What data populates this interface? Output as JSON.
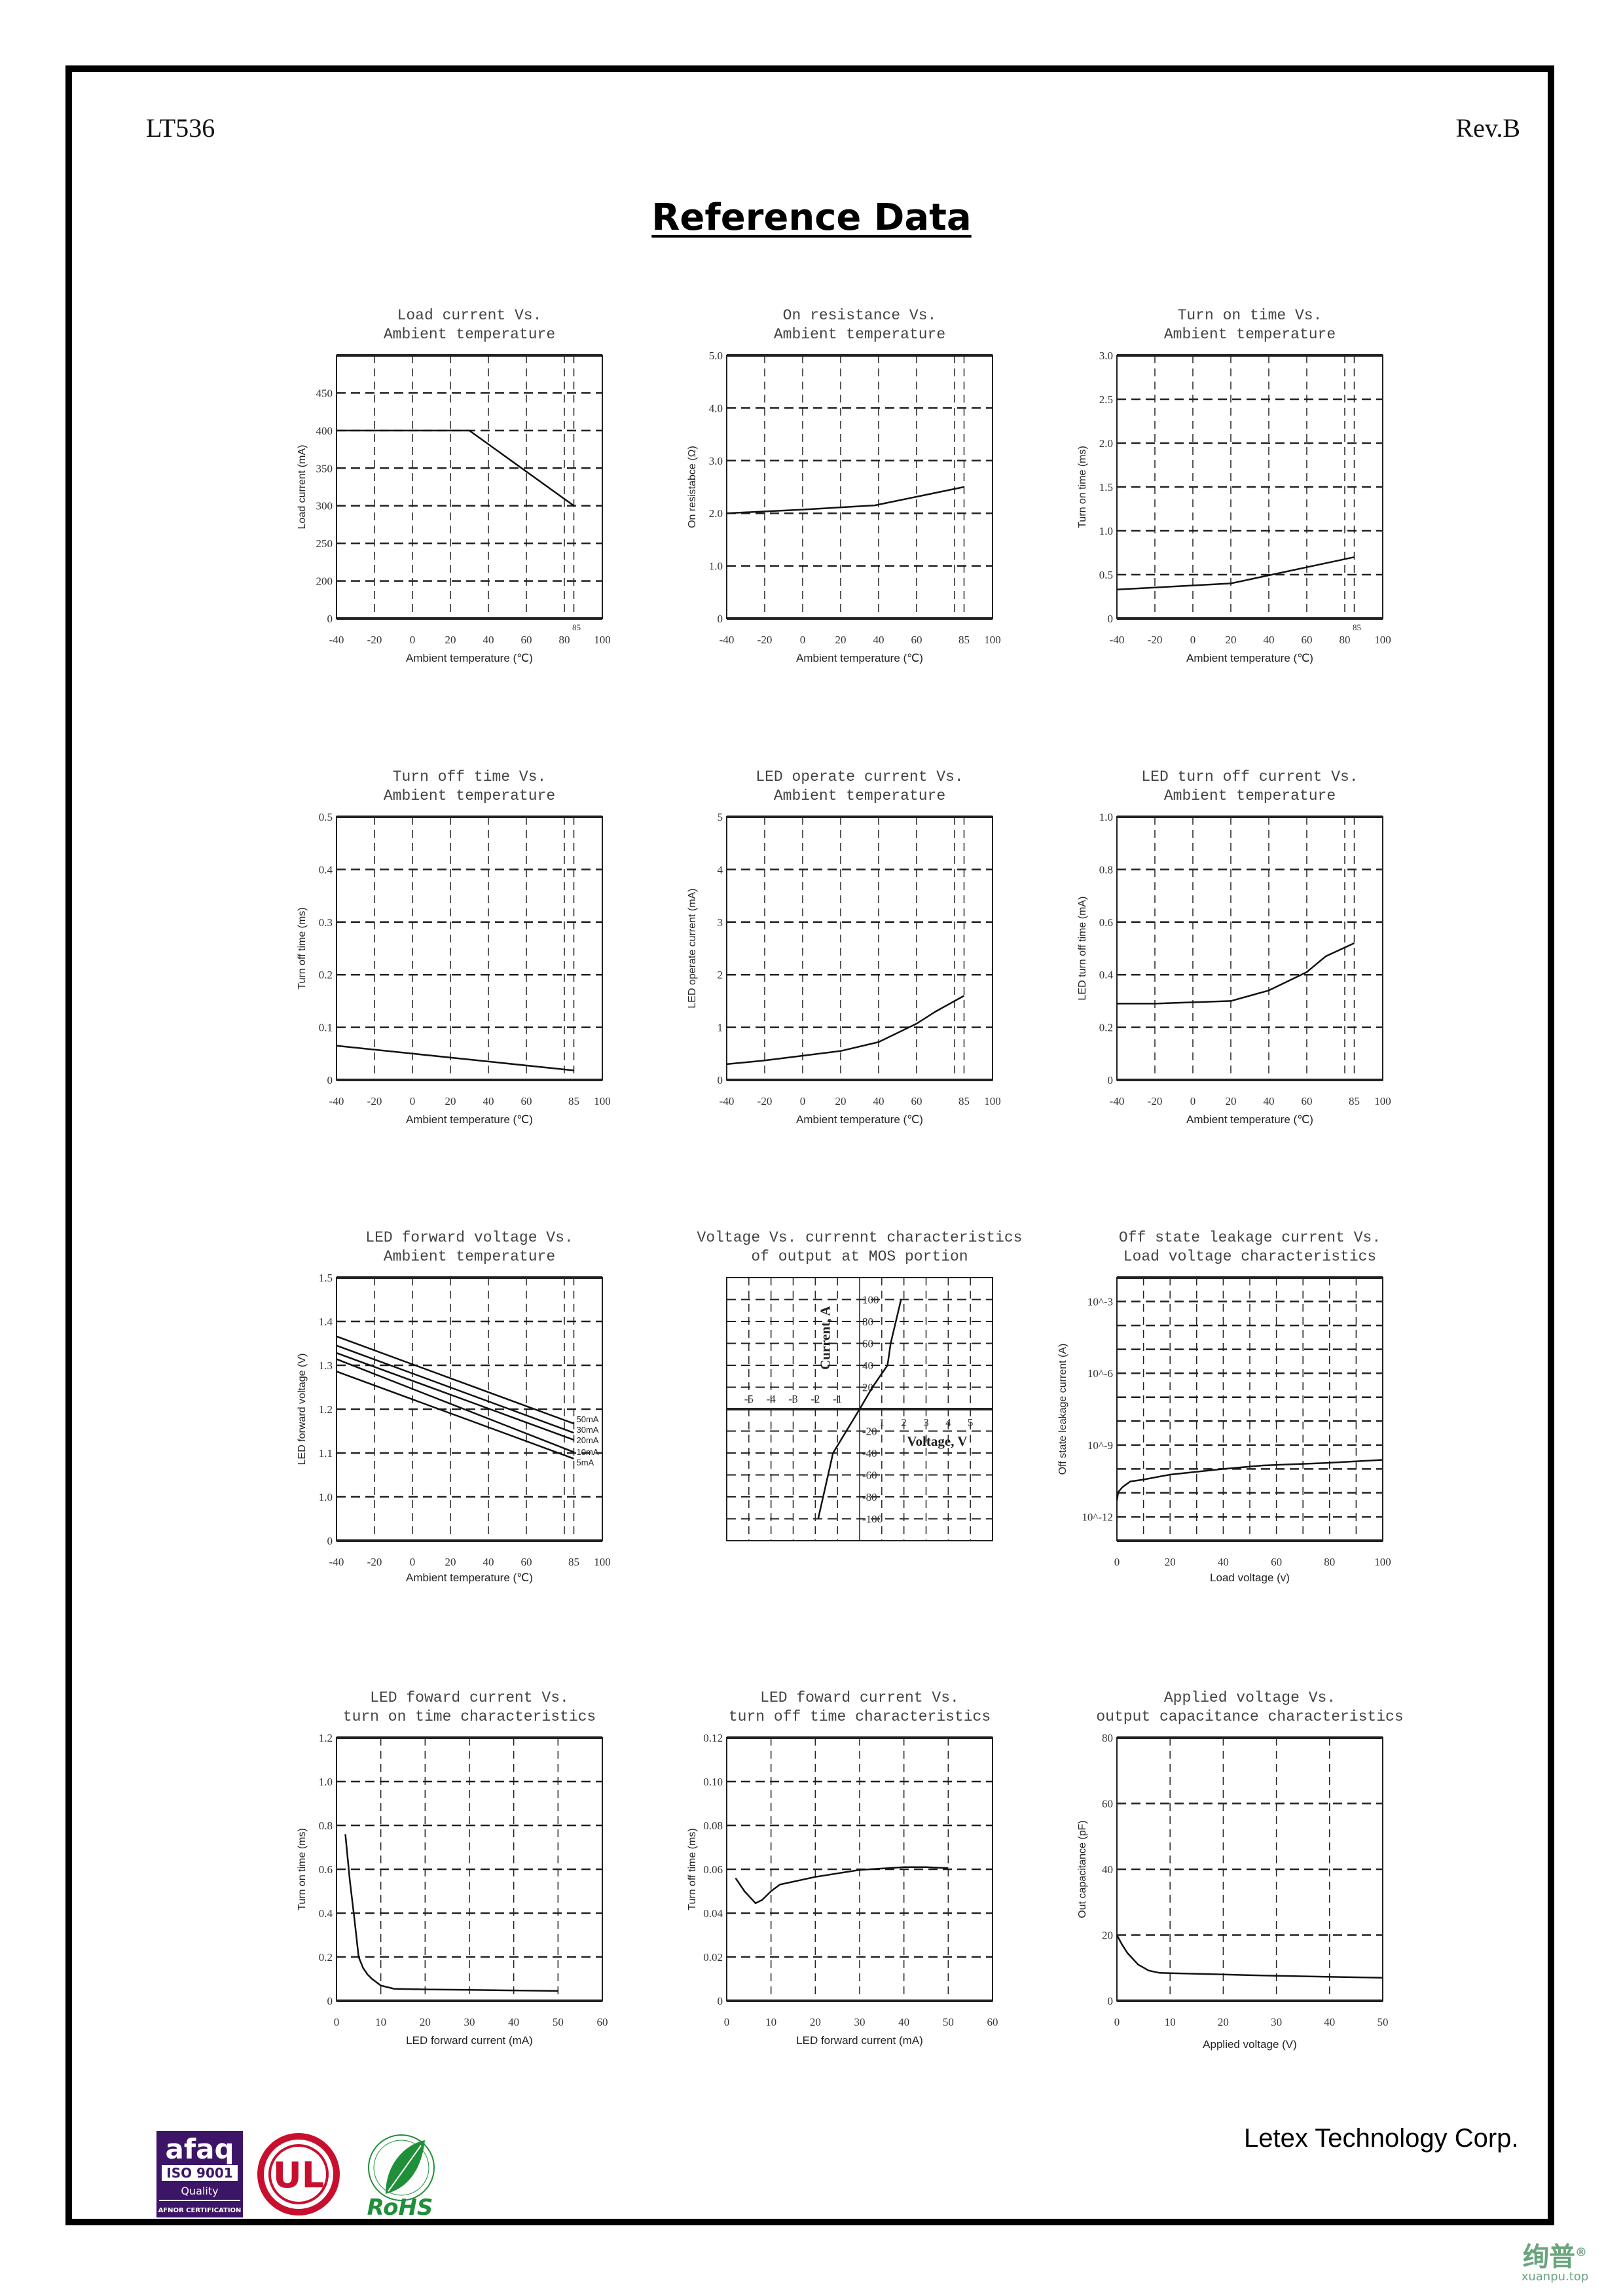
{
  "header": {
    "doc_id": "LT536",
    "revision": "Rev.B",
    "title": "Reference Data"
  },
  "footer": {
    "company": "Letex Technology Corp.",
    "logos": [
      {
        "name": "afaq-iso-9001-logo",
        "text": [
          "afaq",
          "ISO 9001",
          "Quality",
          "AFNOR CERTIFICATION"
        ],
        "color": "#3d1566"
      },
      {
        "name": "ul-logo",
        "text": [
          "UL"
        ],
        "color": "#c8102e"
      },
      {
        "name": "rohs-logo",
        "text": [
          "RoHS"
        ],
        "color": "#1f8f3a"
      }
    ],
    "watermark": {
      "chars": "绚普",
      "mark": "®",
      "site": "xuanpu.top",
      "color": "#6aa57e"
    }
  },
  "charts": [
    {
      "type": "line",
      "title": [
        "Load current Vs.",
        "Ambient temperature"
      ],
      "xlabel": "Ambient temperature (℃)",
      "ylabel": "Load current (mA)",
      "xlim": [
        -40,
        100
      ],
      "xticks": [
        "-40",
        "-20",
        "0",
        "20",
        "40",
        "60",
        "80",
        "85",
        "100"
      ],
      "xgrid": [
        -20,
        0,
        20,
        40,
        60,
        80,
        85
      ],
      "ylim": [
        0,
        500
      ],
      "y_axis_break": true,
      "yticks": [
        "0",
        "200",
        "250",
        "300",
        "350",
        "400",
        "450"
      ],
      "series": [
        {
          "x": [
            -40,
            30,
            85
          ],
          "y": [
            400,
            400,
            300
          ]
        }
      ]
    },
    {
      "type": "line",
      "title": [
        "On resistance Vs.",
        "Ambient temperature"
      ],
      "xlabel": "Ambient temperature (℃)",
      "ylabel": "On resistabce (Ω)",
      "xlim": [
        -40,
        100
      ],
      "xticks": [
        "-40",
        "-20",
        "0",
        "20",
        "40",
        "60",
        "85",
        "100"
      ],
      "xgrid": [
        -20,
        0,
        20,
        40,
        60,
        80,
        85
      ],
      "ylim": [
        0,
        5
      ],
      "yticks": [
        "0",
        "1.0",
        "2.0",
        "3.0",
        "4.0",
        "5.0"
      ],
      "series": [
        {
          "x": [
            -40,
            0,
            38,
            85
          ],
          "y": [
            2.0,
            2.07,
            2.15,
            2.5
          ]
        }
      ]
    },
    {
      "type": "line",
      "title": [
        "Turn on time Vs.",
        "Ambient temperature"
      ],
      "xlabel": "Ambient temperature (℃)",
      "ylabel": "Turn on time (ms)",
      "xlim": [
        -40,
        100
      ],
      "xticks": [
        "-40",
        "-20",
        "0",
        "20",
        "40",
        "60",
        "80",
        "85",
        "100"
      ],
      "xgrid": [
        -20,
        0,
        20,
        40,
        60,
        80,
        85
      ],
      "ylim": [
        0,
        3
      ],
      "yticks": [
        "0",
        "0.5",
        "1.0",
        "1.5",
        "2.0",
        "2.5",
        "3.0"
      ],
      "series": [
        {
          "x": [
            -40,
            20,
            85
          ],
          "y": [
            0.33,
            0.4,
            0.7
          ]
        }
      ]
    },
    {
      "type": "line",
      "title": [
        "Turn off time Vs.",
        "Ambient temperature"
      ],
      "xlabel": "Ambient temperature (℃)",
      "ylabel": "Turn off time (ms)",
      "xlim": [
        -40,
        100
      ],
      "xticks": [
        "-40",
        "-20",
        "0",
        "20",
        "40",
        "60",
        "85",
        "100"
      ],
      "xgrid": [
        -20,
        0,
        20,
        40,
        60,
        80,
        85
      ],
      "ylim": [
        0,
        0.5
      ],
      "yticks": [
        "0",
        "0.1",
        "0.2",
        "0.3",
        "0.4",
        "0.5"
      ],
      "series": [
        {
          "x": [
            -40,
            85
          ],
          "y": [
            0.065,
            0.018
          ]
        }
      ]
    },
    {
      "type": "line",
      "title": [
        "LED operate current Vs.",
        "Ambient temperature"
      ],
      "xlabel": "Ambient temperature (℃)",
      "ylabel": "LED operate current (mA)",
      "xlim": [
        -40,
        100
      ],
      "xticks": [
        "-40",
        "-20",
        "0",
        "20",
        "40",
        "60",
        "85",
        "100"
      ],
      "xgrid": [
        -20,
        0,
        20,
        40,
        60,
        80,
        85
      ],
      "ylim": [
        0,
        5
      ],
      "yticks": [
        "0",
        "1",
        "2",
        "3",
        "4",
        "5"
      ],
      "series": [
        {
          "x": [
            -40,
            -20,
            0,
            20,
            40,
            60,
            70,
            85
          ],
          "y": [
            0.3,
            0.37,
            0.46,
            0.55,
            0.72,
            1.07,
            1.3,
            1.6
          ]
        }
      ]
    },
    {
      "type": "line",
      "title": [
        "LED turn off current Vs.",
        "Ambient temperature"
      ],
      "xlabel": "Ambient temperature (℃)",
      "ylabel": "LED turn off time (mA)",
      "xlim": [
        -40,
        100
      ],
      "xticks": [
        "-40",
        "-20",
        "0",
        "20",
        "40",
        "60",
        "85",
        "100"
      ],
      "xgrid": [
        -20,
        0,
        20,
        40,
        60,
        80,
        85
      ],
      "ylim": [
        0,
        1.0
      ],
      "yticks": [
        "0",
        "0.2",
        "0.4",
        "0.6",
        "0.8",
        "1.0"
      ],
      "series": [
        {
          "x": [
            -40,
            -20,
            20,
            40,
            60,
            70,
            85
          ],
          "y": [
            0.29,
            0.29,
            0.3,
            0.34,
            0.41,
            0.47,
            0.52
          ]
        }
      ]
    },
    {
      "type": "line",
      "title": [
        "LED forward voltage Vs.",
        "Ambient temperature"
      ],
      "xlabel": "Ambient temperature (℃)",
      "ylabel": "LED forward voltage (V)",
      "xlim": [
        -40,
        100
      ],
      "xticks": [
        "-40",
        "-20",
        "0",
        "20",
        "40",
        "60",
        "85",
        "100"
      ],
      "xgrid": [
        -20,
        0,
        20,
        40,
        60,
        80,
        85
      ],
      "ylim": [
        0,
        1.5
      ],
      "y_axis_break": true,
      "yticks": [
        "0",
        "1.0",
        "1.1",
        "1.2",
        "1.3",
        "1.4",
        "1.5"
      ],
      "series": [
        {
          "name": "50mA",
          "x": [
            -40,
            85
          ],
          "y": [
            1.366,
            1.167
          ]
        },
        {
          "name": "30mA",
          "x": [
            -40,
            85
          ],
          "y": [
            1.345,
            1.146
          ]
        },
        {
          "name": "20mA",
          "x": [
            -40,
            85
          ],
          "y": [
            1.328,
            1.13
          ]
        },
        {
          "name": "10mA",
          "x": [
            -40,
            85
          ],
          "y": [
            1.314,
            1.102
          ]
        },
        {
          "name": "5mA",
          "x": [
            -40,
            85
          ],
          "y": [
            1.286,
            1.087
          ]
        }
      ]
    },
    {
      "type": "line",
      "title": [
        "Voltage Vs. currennt characteristics",
        "of output at MOS portion"
      ],
      "xlabel": "Voltage, V",
      "ylabel": "Current, A",
      "centered_axes": true,
      "xlim": [
        -6,
        6
      ],
      "xticks": [
        "-5",
        "-4",
        "-3",
        "-2",
        "-1",
        "1",
        "2",
        "3",
        "4",
        "5"
      ],
      "xgrid": [
        -5,
        -4,
        -3,
        -2,
        -1,
        1,
        2,
        3,
        4,
        5
      ],
      "ylim": [
        -120,
        120
      ],
      "yticks": [
        "100",
        "80",
        "60",
        "40",
        "20",
        "-20",
        "-40",
        "-60",
        "-80",
        "-100"
      ],
      "series": [
        {
          "x": [
            -1.87,
            -1.2,
            0,
            0.58,
            1.26,
            1.4,
            1.87
          ],
          "y": [
            -100,
            -40,
            0,
            20,
            40,
            60,
            100
          ]
        }
      ]
    },
    {
      "type": "line",
      "title": [
        "Off state leakage current Vs.",
        "Load voltage characteristics"
      ],
      "xlabel": "Load voltage (v)",
      "ylabel": "Off state leakage current (A)",
      "xlim": [
        0,
        100
      ],
      "xticks": [
        "0",
        "20",
        "40",
        "60",
        "80",
        "100"
      ],
      "xgrid": [
        10,
        20,
        30,
        40,
        50,
        60,
        70,
        80,
        90
      ],
      "ylog": true,
      "ylim": [
        1e-13,
        0.01
      ],
      "yticks": [
        "10^-3",
        "10^-6",
        "10^-9",
        "10^-12"
      ],
      "series": [
        {
          "x": [
            0,
            0.5,
            2,
            5,
            10,
            20,
            40,
            55,
            80,
            100
          ],
          "y": [
            4.8e-12,
            1.07e-11,
            1.7e-11,
            3e-11,
            3.6e-11,
            5.8e-11,
            1e-10,
            1.4e-10,
            1.8e-10,
            2.4e-10
          ]
        }
      ]
    },
    {
      "type": "line",
      "title": [
        "LED foward current Vs.",
        "turn on time characteristics"
      ],
      "xlabel": "LED forward current (mA)",
      "ylabel": "Turn on time (ms)",
      "xlim": [
        0,
        60
      ],
      "xticks": [
        "0",
        "10",
        "20",
        "30",
        "40",
        "50",
        "60"
      ],
      "xgrid": [
        10,
        20,
        30,
        40,
        50
      ],
      "ylim": [
        0,
        1.2
      ],
      "yticks": [
        "0",
        "0.2",
        "0.4",
        "0.6",
        "0.8",
        "1.0",
        "1.2"
      ],
      "series": [
        {
          "x": [
            2,
            3,
            4,
            5,
            6,
            7,
            8,
            10,
            13,
            20,
            30,
            50
          ],
          "y": [
            0.76,
            0.55,
            0.38,
            0.2,
            0.15,
            0.12,
            0.1,
            0.07,
            0.055,
            0.052,
            0.05,
            0.045
          ]
        }
      ]
    },
    {
      "type": "line",
      "title": [
        "LED foward current Vs.",
        "turn off time characteristics"
      ],
      "xlabel": "LED forward current (mA)",
      "ylabel": "Turn off time (ms)",
      "xlim": [
        0,
        60
      ],
      "xticks": [
        "0",
        "10",
        "20",
        "30",
        "40",
        "50",
        "60"
      ],
      "xgrid": [
        10,
        20,
        30,
        40,
        50
      ],
      "ylim": [
        0,
        0.12
      ],
      "yticks": [
        "0",
        "0.02",
        "0.04",
        "0.06",
        "0.08",
        "0.10",
        "0.12"
      ],
      "series": [
        {
          "x": [
            2,
            4,
            6.5,
            8,
            10,
            12,
            20,
            30,
            40,
            45,
            50
          ],
          "y": [
            0.056,
            0.05,
            0.0445,
            0.046,
            0.05,
            0.053,
            0.0565,
            0.0597,
            0.061,
            0.061,
            0.0605
          ]
        }
      ]
    },
    {
      "type": "line",
      "title": [
        "Applied voltage Vs.",
        "output capacitance characteristics"
      ],
      "xlabel": "Applied voltage (V)",
      "ylabel": "Out capacitance (pF)",
      "xlim": [
        0,
        50
      ],
      "xticks": [
        "0",
        "10",
        "20",
        "30",
        "40",
        "50"
      ],
      "xgrid": [
        10,
        20,
        30,
        40
      ],
      "ylim": [
        0,
        80
      ],
      "yticks": [
        "0",
        "20",
        "40",
        "60",
        "80"
      ],
      "series": [
        {
          "x": [
            0,
            1,
            2,
            4,
            6,
            8,
            20,
            30,
            50
          ],
          "y": [
            20,
            17,
            14.5,
            11,
            9.2,
            8.5,
            8.0,
            7.6,
            7.0
          ]
        }
      ]
    }
  ]
}
